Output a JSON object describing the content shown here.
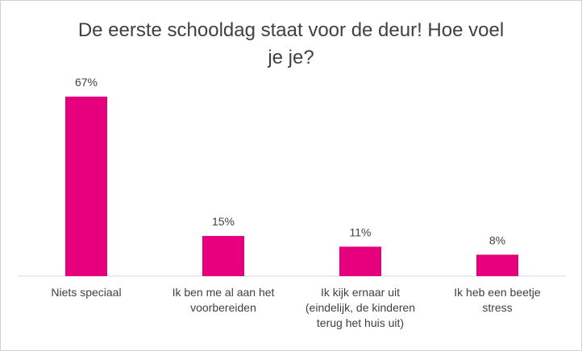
{
  "chart_data": {
    "type": "bar",
    "title": "De eerste schooldag staat voor de deur! Hoe voel je je?",
    "categories": [
      "Niets speciaal",
      "Ik ben me al aan het voorbereiden",
      "Ik kijk ernaar uit (eindelijk, de kinderen terug het huis uit)",
      "Ik heb een beetje stress"
    ],
    "values": [
      67,
      15,
      11,
      8
    ],
    "value_labels": [
      "67%",
      "15%",
      "11%",
      "8%"
    ],
    "color": "#e6007e"
  }
}
